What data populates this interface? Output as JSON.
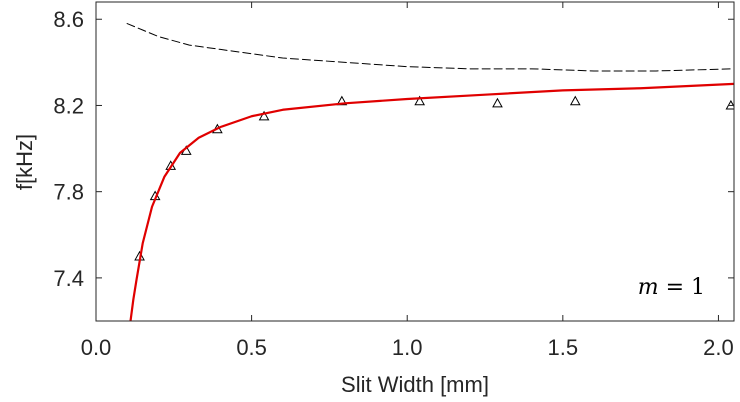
{
  "chart_data": {
    "type": "line",
    "title": "",
    "xlabel": "Slit Width [mm]",
    "ylabel": "f[kHz]",
    "xlim": [
      0,
      2.05
    ],
    "ylim": [
      7.2,
      8.68
    ],
    "xticks": [
      0.0,
      0.5,
      1.0,
      1.5,
      2.0
    ],
    "xtick_labels": [
      "0.0",
      "0.5",
      "1.0",
      "1.5",
      "2.0"
    ],
    "yticks": [
      7.4,
      7.8,
      8.2,
      8.6
    ],
    "ytick_labels": [
      "7.4",
      "7.8",
      "8.2",
      "8.6"
    ],
    "grid": false,
    "legend": "none",
    "annotation": {
      "var": "m",
      "op": " = ",
      "val": "1"
    },
    "series": [
      {
        "style": "markers",
        "marker": "triangle",
        "color": "#000000",
        "x": [
          0.14,
          0.19,
          0.24,
          0.29,
          0.39,
          0.54,
          0.79,
          1.04,
          1.29,
          1.54,
          2.04
        ],
        "y": [
          7.5,
          7.78,
          7.92,
          7.99,
          8.09,
          8.15,
          8.22,
          8.22,
          8.21,
          8.22,
          8.2
        ]
      },
      {
        "style": "solid",
        "color": "#e00000",
        "x": [
          0.11,
          0.12,
          0.13,
          0.15,
          0.18,
          0.22,
          0.27,
          0.33,
          0.4,
          0.5,
          0.6,
          0.8,
          1.0,
          1.25,
          1.5,
          1.75,
          2.05
        ],
        "y": [
          7.19,
          7.3,
          7.39,
          7.56,
          7.73,
          7.87,
          7.98,
          8.05,
          8.1,
          8.15,
          8.18,
          8.21,
          8.23,
          8.25,
          8.27,
          8.28,
          8.3
        ]
      },
      {
        "style": "dashed",
        "color": "#000000",
        "x": [
          0.1,
          0.15,
          0.2,
          0.3,
          0.4,
          0.5,
          0.6,
          0.8,
          1.0,
          1.2,
          1.4,
          1.6,
          1.8,
          2.05
        ],
        "y": [
          8.58,
          8.55,
          8.52,
          8.48,
          8.46,
          8.44,
          8.42,
          8.4,
          8.38,
          8.37,
          8.37,
          8.36,
          8.36,
          8.37
        ]
      }
    ]
  }
}
